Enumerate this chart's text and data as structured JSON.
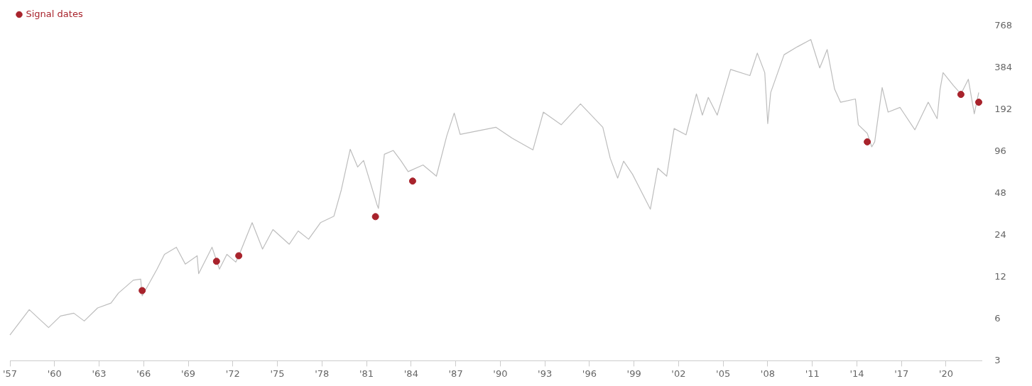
{
  "chart_data": {
    "type": "line",
    "log": true,
    "grid": false,
    "legend": "top left",
    "xlim": [
      1957,
      2022.4
    ],
    "ylim": [
      3,
      768
    ],
    "xticks": [
      {
        "value": 1957,
        "label": "'57"
      },
      {
        "value": 1960,
        "label": "'60"
      },
      {
        "value": 1963,
        "label": "'63"
      },
      {
        "value": 1966,
        "label": "'66"
      },
      {
        "value": 1969,
        "label": "'69"
      },
      {
        "value": 1972,
        "label": "'72"
      },
      {
        "value": 1975,
        "label": "'75"
      },
      {
        "value": 1978,
        "label": "'78"
      },
      {
        "value": 1981,
        "label": "'81"
      },
      {
        "value": 1984,
        "label": "'84"
      },
      {
        "value": 1987,
        "label": "'87"
      },
      {
        "value": 1990,
        "label": "'90"
      },
      {
        "value": 1993,
        "label": "'93"
      },
      {
        "value": 1996,
        "label": "'96"
      },
      {
        "value": 1999,
        "label": "'99"
      },
      {
        "value": 2002,
        "label": "'02"
      },
      {
        "value": 2005,
        "label": "'05"
      },
      {
        "value": 2008,
        "label": "'08"
      },
      {
        "value": 2011,
        "label": "'11"
      },
      {
        "value": 2014,
        "label": "'14"
      },
      {
        "value": 2017,
        "label": "'17"
      },
      {
        "value": 2020,
        "label": "'20"
      }
    ],
    "yticks": [
      3,
      6,
      12,
      24,
      48,
      96,
      192,
      384,
      768
    ],
    "series": [
      {
        "marker": "none",
        "color": "#bdbdbd",
        "x": [
          1957.0,
          1958.3,
          1958.9,
          1959.6,
          1960.4,
          1961.3,
          1962.0,
          1962.9,
          1963.8,
          1964.3,
          1965.3,
          1965.8,
          1965.9,
          1966.9,
          1967.4,
          1968.2,
          1968.8,
          1969.6,
          1969.7,
          1970.6,
          1971.1,
          1971.6,
          1972.2,
          1972.4,
          1973.3,
          1974.0,
          1974.7,
          1975.8,
          1976.4,
          1977.1,
          1977.9,
          1978.8,
          1979.3,
          1979.9,
          1980.4,
          1980.8,
          1981.7,
          1981.8,
          1982.2,
          1982.8,
          1983.3,
          1983.8,
          1984.8,
          1985.7,
          1986.4,
          1986.9,
          1987.3,
          1989.7,
          1990.8,
          1992.2,
          1992.9,
          1994.1,
          1995.4,
          1996.9,
          1997.4,
          1997.9,
          1998.3,
          1998.9,
          2000.1,
          2000.6,
          2001.2,
          2001.7,
          2002.5,
          2003.2,
          2003.6,
          2004.0,
          2004.6,
          2005.5,
          2006.8,
          2007.3,
          2007.8,
          2008.0,
          2008.2,
          2009.1,
          2010.0,
          2010.9,
          2011.5,
          2012.0,
          2012.5,
          2012.9,
          2013.9,
          2014.1,
          2014.7,
          2015.0,
          2015.2,
          2015.7,
          2016.1,
          2016.9,
          2017.9,
          2018.8,
          2019.4,
          2019.6,
          2019.8,
          2020.5,
          2021.0,
          2021.5,
          2021.9,
          2022.2
        ],
        "values": [
          4.6,
          7.0,
          6.1,
          5.2,
          6.3,
          6.6,
          5.8,
          7.2,
          7.8,
          9.2,
          11.4,
          11.6,
          8.8,
          13.7,
          17.5,
          19.7,
          14.9,
          17.1,
          12.7,
          19.7,
          13.7,
          17.5,
          15.4,
          17.1,
          29.6,
          19.1,
          26.4,
          20.7,
          25.8,
          22.5,
          29.6,
          32.9,
          50.9,
          100,
          74.5,
          83,
          40,
          37.5,
          92,
          98,
          83,
          69,
          77,
          64,
          125,
          182,
          128,
          144,
          120,
          99,
          185,
          150,
          212,
          144,
          86,
          62,
          82,
          66,
          37,
          73,
          64,
          141,
          127,
          250,
          176,
          236,
          176,
          375,
          339,
          492,
          356,
          153,
          256,
          479,
          547,
          616,
          385,
          522,
          271,
          218,
          230,
          150,
          130,
          104,
          113,
          278,
          185,
          200,
          138,
          218,
          166,
          271,
          356,
          287,
          250,
          319,
          180,
          256
        ]
      },
      {
        "type": "scatter",
        "marker": "circle",
        "name": "Signal dates",
        "color": "#a8232c",
        "x": [
          1965.9,
          1970.9,
          1972.4,
          1981.6,
          1984.1,
          2014.7,
          2021.0,
          2022.2
        ],
        "values": [
          9.6,
          15.6,
          17.1,
          32.7,
          59,
          113,
          248,
          218
        ]
      }
    ]
  }
}
